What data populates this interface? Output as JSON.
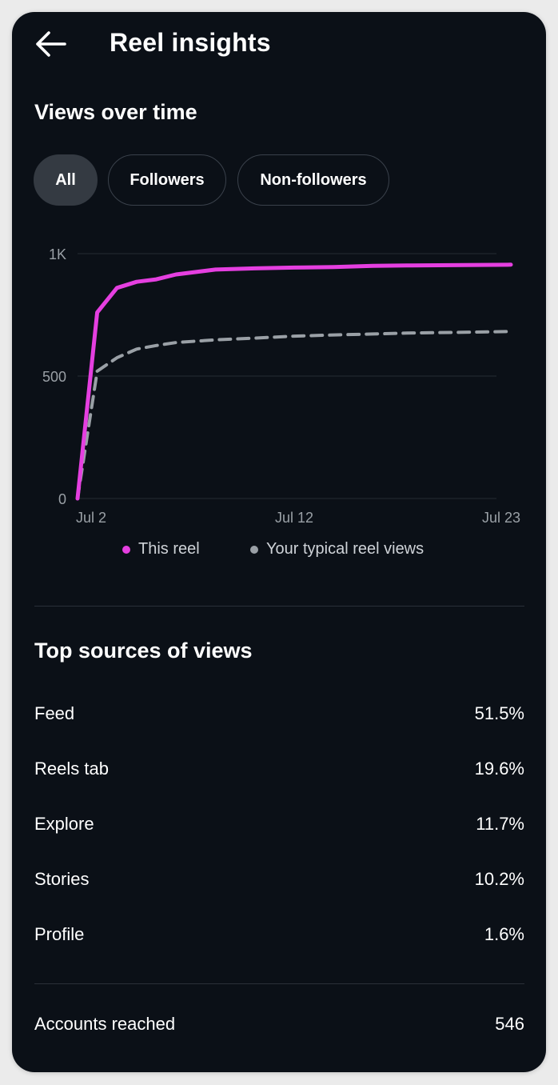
{
  "header": {
    "title": "Reel insights",
    "back_icon": "arrow-left-icon"
  },
  "views_section": {
    "title": "Views over time",
    "filters": [
      {
        "label": "All",
        "active": true
      },
      {
        "label": "Followers",
        "active": false
      },
      {
        "label": "Non-followers",
        "active": false
      }
    ]
  },
  "chart_data": {
    "type": "line",
    "y_ticks": [
      "1K",
      "500",
      "0"
    ],
    "x_ticks": [
      "Jul 2",
      "Jul 12",
      "Jul 23"
    ],
    "ylim": [
      0,
      1000
    ],
    "series": [
      {
        "name": "This reel",
        "color": "#e53fe0",
        "style": "solid",
        "points": [
          [
            "Jul 1",
            0
          ],
          [
            "Jul 2",
            760
          ],
          [
            "Jul 3",
            860
          ],
          [
            "Jul 4",
            885
          ],
          [
            "Jul 5",
            895
          ],
          [
            "Jul 6",
            915
          ],
          [
            "Jul 8",
            935
          ],
          [
            "Jul 10",
            940
          ],
          [
            "Jul 12",
            943
          ],
          [
            "Jul 14",
            945
          ],
          [
            "Jul 16",
            950
          ],
          [
            "Jul 18",
            952
          ],
          [
            "Jul 20",
            953
          ],
          [
            "Jul 23",
            955
          ]
        ]
      },
      {
        "name": "Your typical reel views",
        "color": "#9aa0a6",
        "style": "dashed",
        "points": [
          [
            "Jul 1",
            0
          ],
          [
            "Jul 2",
            520
          ],
          [
            "Jul 3",
            575
          ],
          [
            "Jul 4",
            610
          ],
          [
            "Jul 5",
            625
          ],
          [
            "Jul 6",
            637
          ],
          [
            "Jul 8",
            648
          ],
          [
            "Jul 10",
            655
          ],
          [
            "Jul 12",
            663
          ],
          [
            "Jul 14",
            668
          ],
          [
            "Jul 16",
            672
          ],
          [
            "Jul 18",
            676
          ],
          [
            "Jul 20",
            678
          ],
          [
            "Jul 23",
            682
          ]
        ]
      }
    ]
  },
  "sources_section": {
    "title": "Top sources of views",
    "rows": [
      {
        "label": "Feed",
        "value": "51.5%"
      },
      {
        "label": "Reels tab",
        "value": "19.6%"
      },
      {
        "label": "Explore",
        "value": "11.7%"
      },
      {
        "label": "Stories",
        "value": "10.2%"
      },
      {
        "label": "Profile",
        "value": "1.6%"
      }
    ]
  },
  "accounts": {
    "label": "Accounts reached",
    "value": "546"
  }
}
